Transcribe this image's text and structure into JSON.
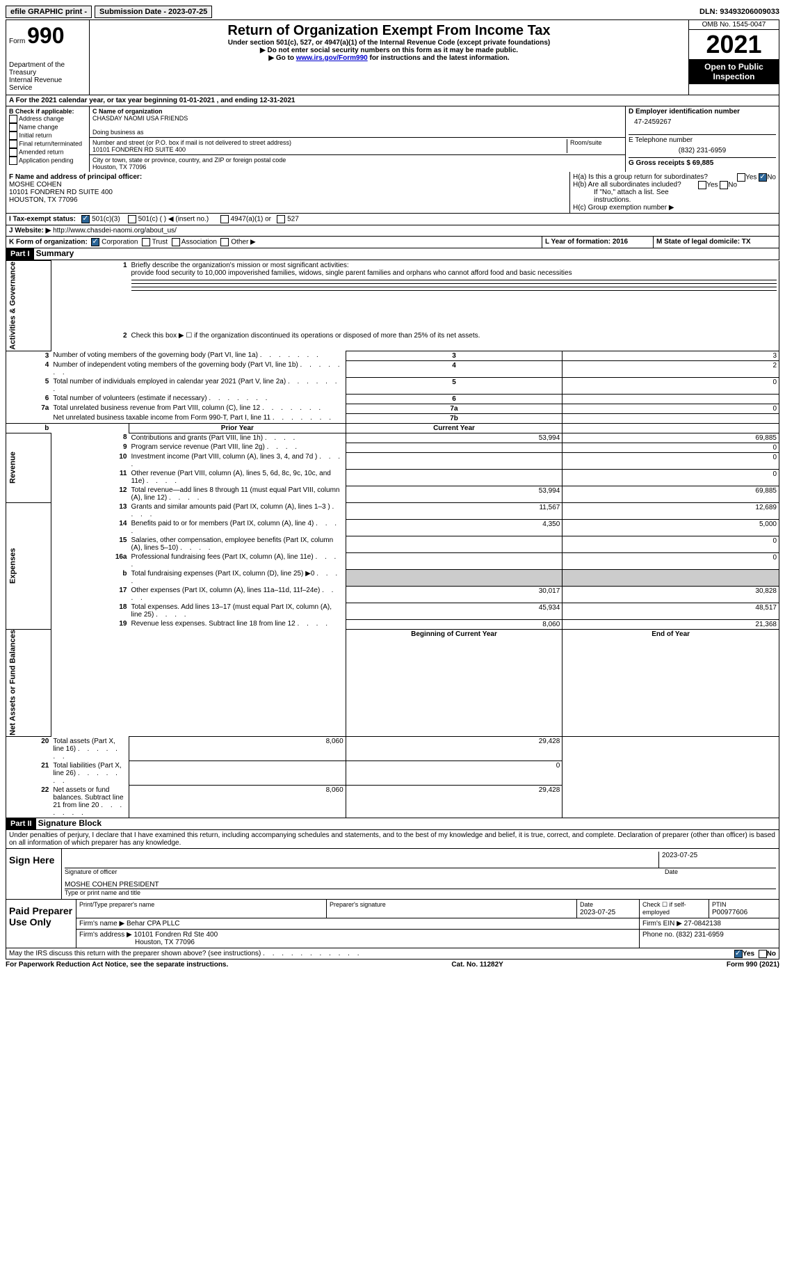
{
  "topbar": {
    "efile": "efile GRAPHIC print -",
    "submission": "Submission Date - 2023-07-25",
    "dln": "DLN: 93493206009033"
  },
  "header": {
    "form_word": "Form",
    "form_num": "990",
    "dept": "Department of the Treasury",
    "irs": "Internal Revenue Service",
    "title": "Return of Organization Exempt From Income Tax",
    "subtitle": "Under section 501(c), 527, or 4947(a)(1) of the Internal Revenue Code (except private foundations)",
    "note1": "▶ Do not enter social security numbers on this form as it may be made public.",
    "note2_pre": "▶ Go to ",
    "note2_link": "www.irs.gov/Form990",
    "note2_post": " for instructions and the latest information.",
    "omb": "OMB No. 1545-0047",
    "year": "2021",
    "inspection": "Open to Public Inspection"
  },
  "row_a": "A For the 2021 calendar year, or tax year beginning 01-01-2021   , and ending 12-31-2021",
  "col_b": {
    "header": "B Check if applicable:",
    "items": [
      "Address change",
      "Name change",
      "Initial return",
      "Final return/terminated",
      "Amended return",
      "Application pending"
    ]
  },
  "col_c": {
    "c_label": "C Name of organization",
    "org": "CHASDAY NAOMI USA FRIENDS",
    "dba": "Doing business as",
    "addr_label": "Number and street (or P.O. box if mail is not delivered to street address)",
    "addr": "10101 FONDREN RD SUITE 400",
    "room": "Room/suite",
    "city_label": "City or town, state or province, country, and ZIP or foreign postal code",
    "city": "Houston, TX  77096"
  },
  "col_d": {
    "d_label": "D Employer identification number",
    "ein": "47-2459267",
    "e_label": "E Telephone number",
    "phone": "(832) 231-6959",
    "g_label": "G Gross receipts $ 69,885"
  },
  "section_f": {
    "f_label": "F Name and address of principal officer:",
    "name": "MOSHE COHEN",
    "addr1": "10101 FONDREN RD SUITE 400",
    "addr2": "HOUSTON, TX  77096"
  },
  "section_h": {
    "ha": "H(a)  Is this a group return for subordinates?",
    "hb": "H(b)  Are all subordinates included?",
    "hb_note": "If \"No,\" attach a list. See instructions.",
    "hc": "H(c)  Group exemption number ▶",
    "yes": "Yes",
    "no": "No"
  },
  "row_i": {
    "label": "I   Tax-exempt status:",
    "o1": "501(c)(3)",
    "o2": "501(c) (  ) ◀ (insert no.)",
    "o3": "4947(a)(1) or",
    "o4": "527"
  },
  "row_j": {
    "label": "J   Website: ▶  ",
    "url": "http://www.chasdei-naomi.org/about_us/"
  },
  "row_k": {
    "label": "K Form of organization:",
    "o1": "Corporation",
    "o2": "Trust",
    "o3": "Association",
    "o4": "Other ▶",
    "l": "L Year of formation: 2016",
    "m": "M State of legal domicile: TX"
  },
  "part1": {
    "header": "Part I",
    "title": "Summary",
    "side_ag": "Activities & Governance",
    "side_rev": "Revenue",
    "side_exp": "Expenses",
    "side_na": "Net Assets or Fund Balances",
    "line1_label": "Briefly describe the organization's mission or most significant activities:",
    "line1_text": "provide food security to 10,000 impoverished families, widows, single parent families and orphans who cannot afford food and basic necessities",
    "line2": "Check this box ▶ ☐ if the organization discontinued its operations or disposed of more than 25% of its net assets.",
    "prior_year": "Prior Year",
    "current_year": "Current Year",
    "begin_year": "Beginning of Current Year",
    "end_year": "End of Year",
    "rows_ag": [
      {
        "n": "3",
        "label": "Number of voting members of the governing body (Part VI, line 1a)",
        "box": "3",
        "val": "3"
      },
      {
        "n": "4",
        "label": "Number of independent voting members of the governing body (Part VI, line 1b)",
        "box": "4",
        "val": "2"
      },
      {
        "n": "5",
        "label": "Total number of individuals employed in calendar year 2021 (Part V, line 2a)",
        "box": "5",
        "val": "0"
      },
      {
        "n": "6",
        "label": "Total number of volunteers (estimate if necessary)",
        "box": "6",
        "val": ""
      },
      {
        "n": "7a",
        "label": "Total unrelated business revenue from Part VIII, column (C), line 12",
        "box": "7a",
        "val": "0"
      },
      {
        "n": "",
        "label": "Net unrelated business taxable income from Form 990-T, Part I, line 11",
        "box": "7b",
        "val": ""
      }
    ],
    "rows_rev": [
      {
        "n": "8",
        "label": "Contributions and grants (Part VIII, line 1h)",
        "py": "53,994",
        "cy": "69,885"
      },
      {
        "n": "9",
        "label": "Program service revenue (Part VIII, line 2g)",
        "py": "",
        "cy": "0"
      },
      {
        "n": "10",
        "label": "Investment income (Part VIII, column (A), lines 3, 4, and 7d )",
        "py": "",
        "cy": "0"
      },
      {
        "n": "11",
        "label": "Other revenue (Part VIII, column (A), lines 5, 6d, 8c, 9c, 10c, and 11e)",
        "py": "",
        "cy": "0"
      },
      {
        "n": "12",
        "label": "Total revenue—add lines 8 through 11 (must equal Part VIII, column (A), line 12)",
        "py": "53,994",
        "cy": "69,885"
      }
    ],
    "rows_exp": [
      {
        "n": "13",
        "label": "Grants and similar amounts paid (Part IX, column (A), lines 1–3 )",
        "py": "11,567",
        "cy": "12,689"
      },
      {
        "n": "14",
        "label": "Benefits paid to or for members (Part IX, column (A), line 4)",
        "py": "4,350",
        "cy": "5,000"
      },
      {
        "n": "15",
        "label": "Salaries, other compensation, employee benefits (Part IX, column (A), lines 5–10)",
        "py": "",
        "cy": "0"
      },
      {
        "n": "16a",
        "label": "Professional fundraising fees (Part IX, column (A), line 11e)",
        "py": "",
        "cy": "0"
      },
      {
        "n": "b",
        "label": "Total fundraising expenses (Part IX, column (D), line 25) ▶0",
        "py": "GRAY",
        "cy": "GRAY"
      },
      {
        "n": "17",
        "label": "Other expenses (Part IX, column (A), lines 11a–11d, 11f–24e)",
        "py": "30,017",
        "cy": "30,828"
      },
      {
        "n": "18",
        "label": "Total expenses. Add lines 13–17 (must equal Part IX, column (A), line 25)",
        "py": "45,934",
        "cy": "48,517"
      },
      {
        "n": "19",
        "label": "Revenue less expenses. Subtract line 18 from line 12",
        "py": "8,060",
        "cy": "21,368"
      }
    ],
    "rows_na": [
      {
        "n": "20",
        "label": "Total assets (Part X, line 16)",
        "py": "8,060",
        "cy": "29,428"
      },
      {
        "n": "21",
        "label": "Total liabilities (Part X, line 26)",
        "py": "",
        "cy": "0"
      },
      {
        "n": "22",
        "label": "Net assets or fund balances. Subtract line 21 from line 20",
        "py": "8,060",
        "cy": "29,428"
      }
    ]
  },
  "part2": {
    "header": "Part II",
    "title": "Signature Block",
    "penalty": "Under penalties of perjury, I declare that I have examined this return, including accompanying schedules and statements, and to the best of my knowledge and belief, it is true, correct, and complete. Declaration of preparer (other than officer) is based on all information of which preparer has any knowledge."
  },
  "sign": {
    "label": "Sign Here",
    "sig_of": "Signature of officer",
    "date": "Date",
    "date_val": "2023-07-25",
    "name": "MOSHE COHEN  PRESIDENT",
    "type": "Type or print name and title"
  },
  "prep": {
    "label": "Paid Preparer Use Only",
    "h1": "Print/Type preparer's name",
    "h2": "Preparer's signature",
    "h3_label": "Date",
    "h3": "2023-07-25",
    "h4": "Check ☐ if self-employed",
    "h5_label": "PTIN",
    "h5": "P00977606",
    "firm_name_label": "Firm's name      ▶",
    "firm_name": "Behar CPA PLLC",
    "firm_ein_label": "Firm's EIN ▶",
    "firm_ein": "27-0842138",
    "firm_addr_label": "Firm's address ▶",
    "firm_addr1": "10101 Fondren Rd Ste 400",
    "firm_addr2": "Houston, TX  77096",
    "firm_phone_label": "Phone no.",
    "firm_phone": "(832) 231-6959"
  },
  "footer_q": "May the IRS discuss this return with the preparer shown above? (see instructions)",
  "footer": {
    "left": "For Paperwork Reduction Act Notice, see the separate instructions.",
    "mid": "Cat. No. 11282Y",
    "right": "Form 990 (2021)"
  }
}
